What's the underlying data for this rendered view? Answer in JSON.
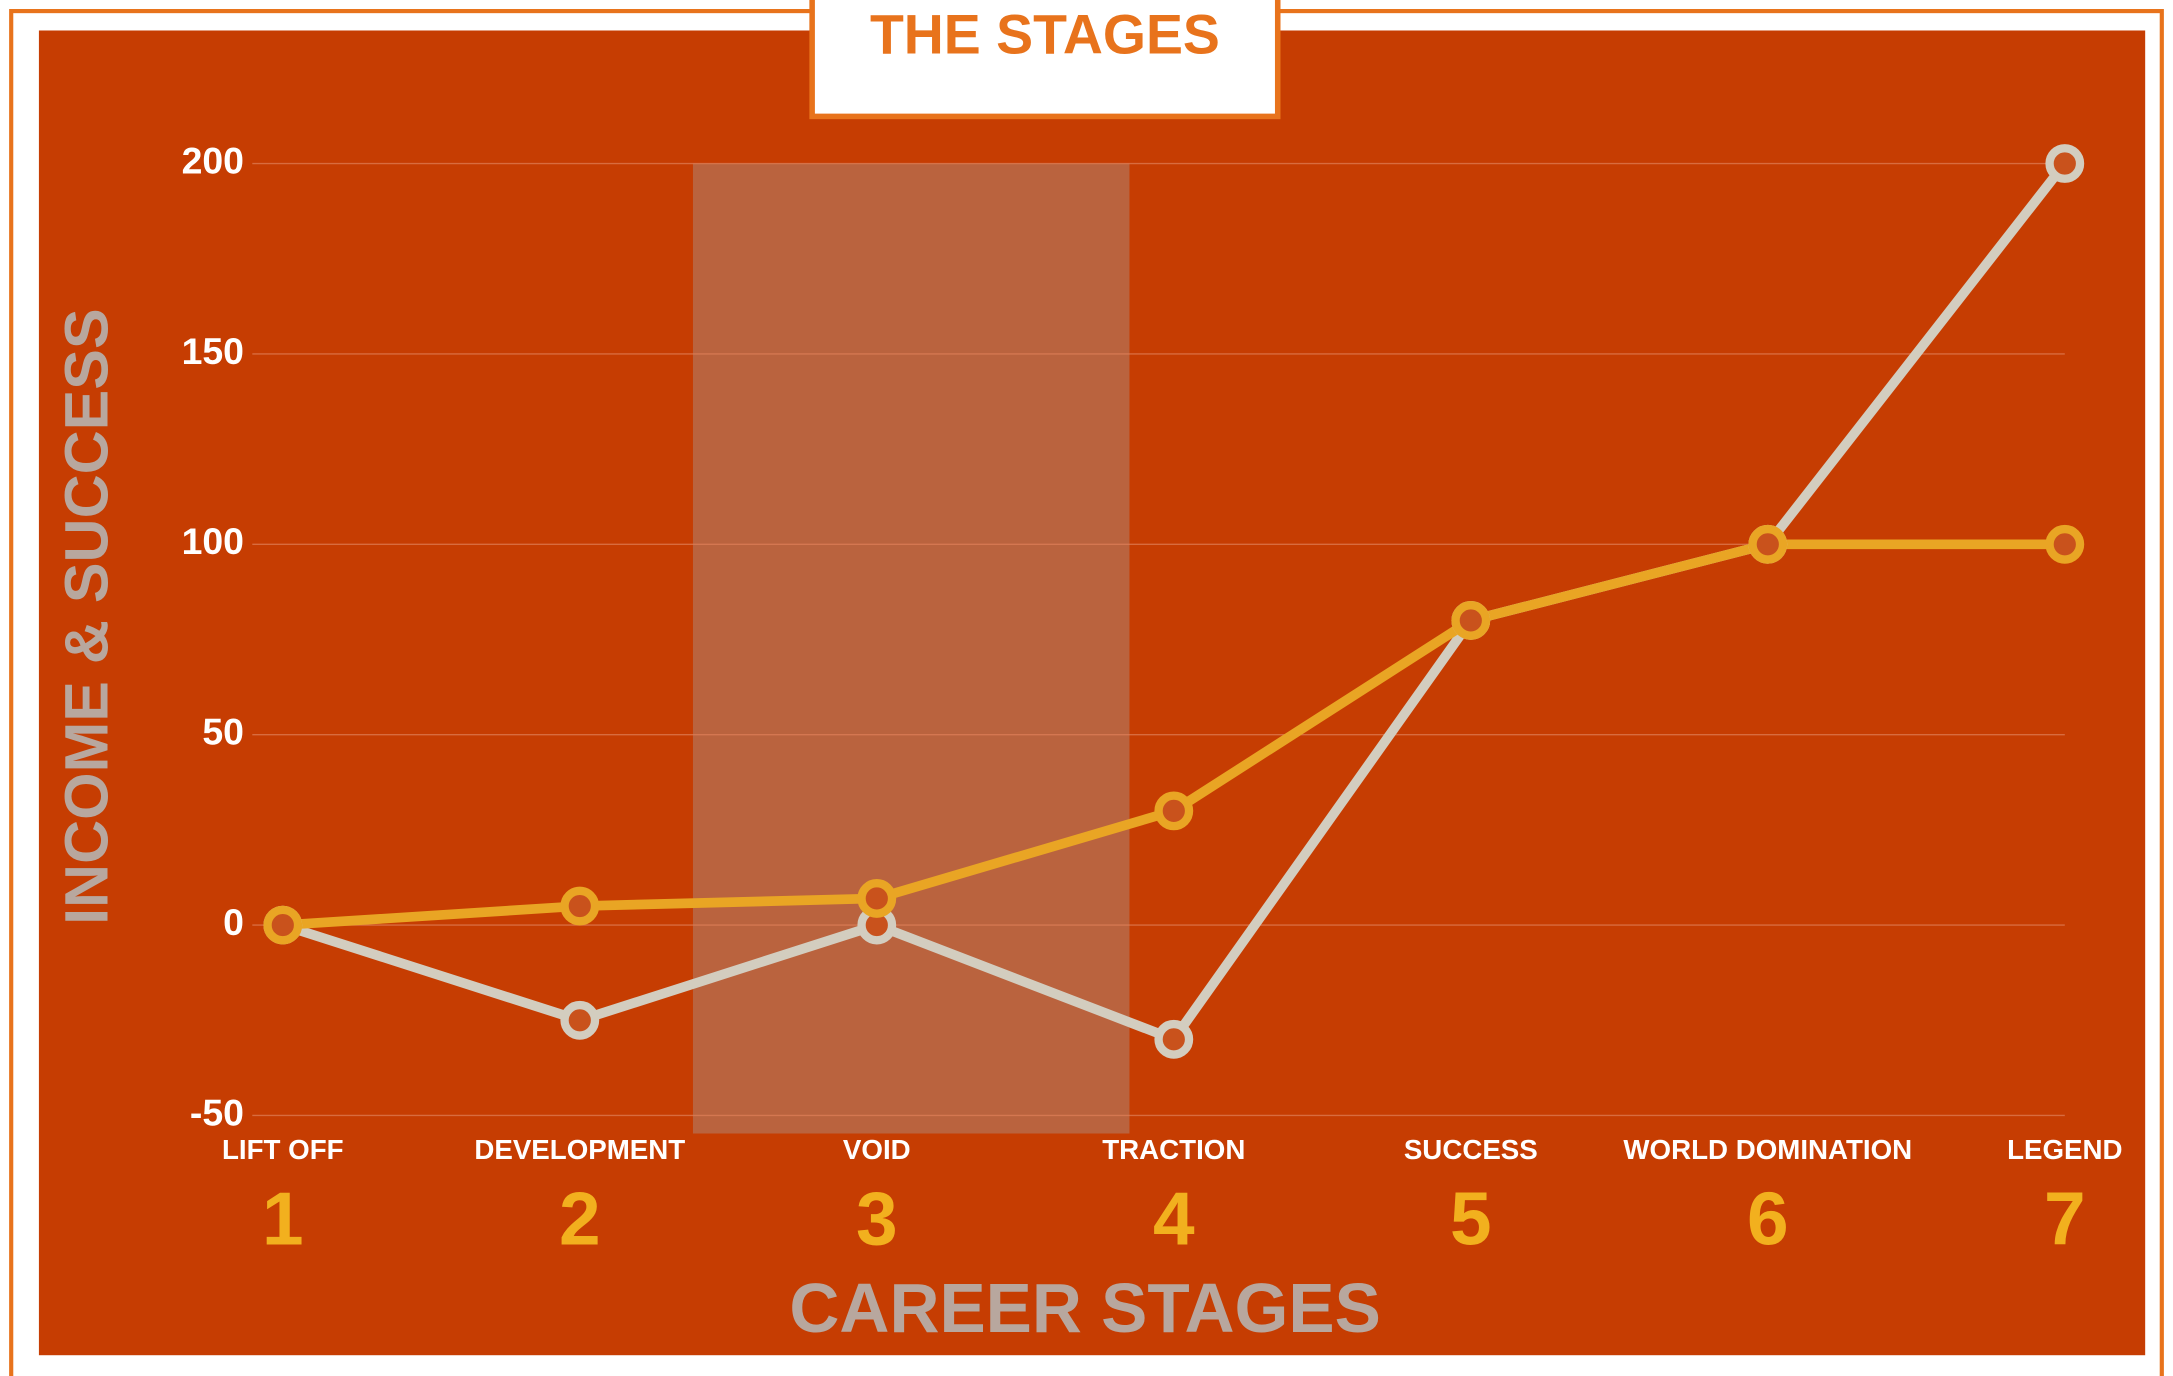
{
  "chart_data": {
    "type": "line",
    "title": "THE STAGES",
    "ylabel": "INCOME & SUCCESS",
    "xlabel": "CAREER STAGES",
    "categories": [
      "LIFT OFF",
      "DEVELOPMENT",
      "VOID",
      "TRACTION",
      "SUCCESS",
      "WORLD DOMINATION",
      "LEGEND"
    ],
    "stage_numbers": [
      1,
      2,
      3,
      4,
      5,
      6,
      7
    ],
    "series": [
      {
        "color": "#d3cdbf",
        "values": [
          0,
          -25,
          0,
          -30,
          80,
          100,
          200
        ]
      },
      {
        "color": "#e9a524",
        "values": [
          0,
          5,
          7,
          30,
          80,
          100,
          100
        ]
      }
    ],
    "ylim": [
      -50,
      200
    ],
    "yticks": [
      -50,
      0,
      50,
      100,
      150,
      200
    ],
    "grid": true
  }
}
